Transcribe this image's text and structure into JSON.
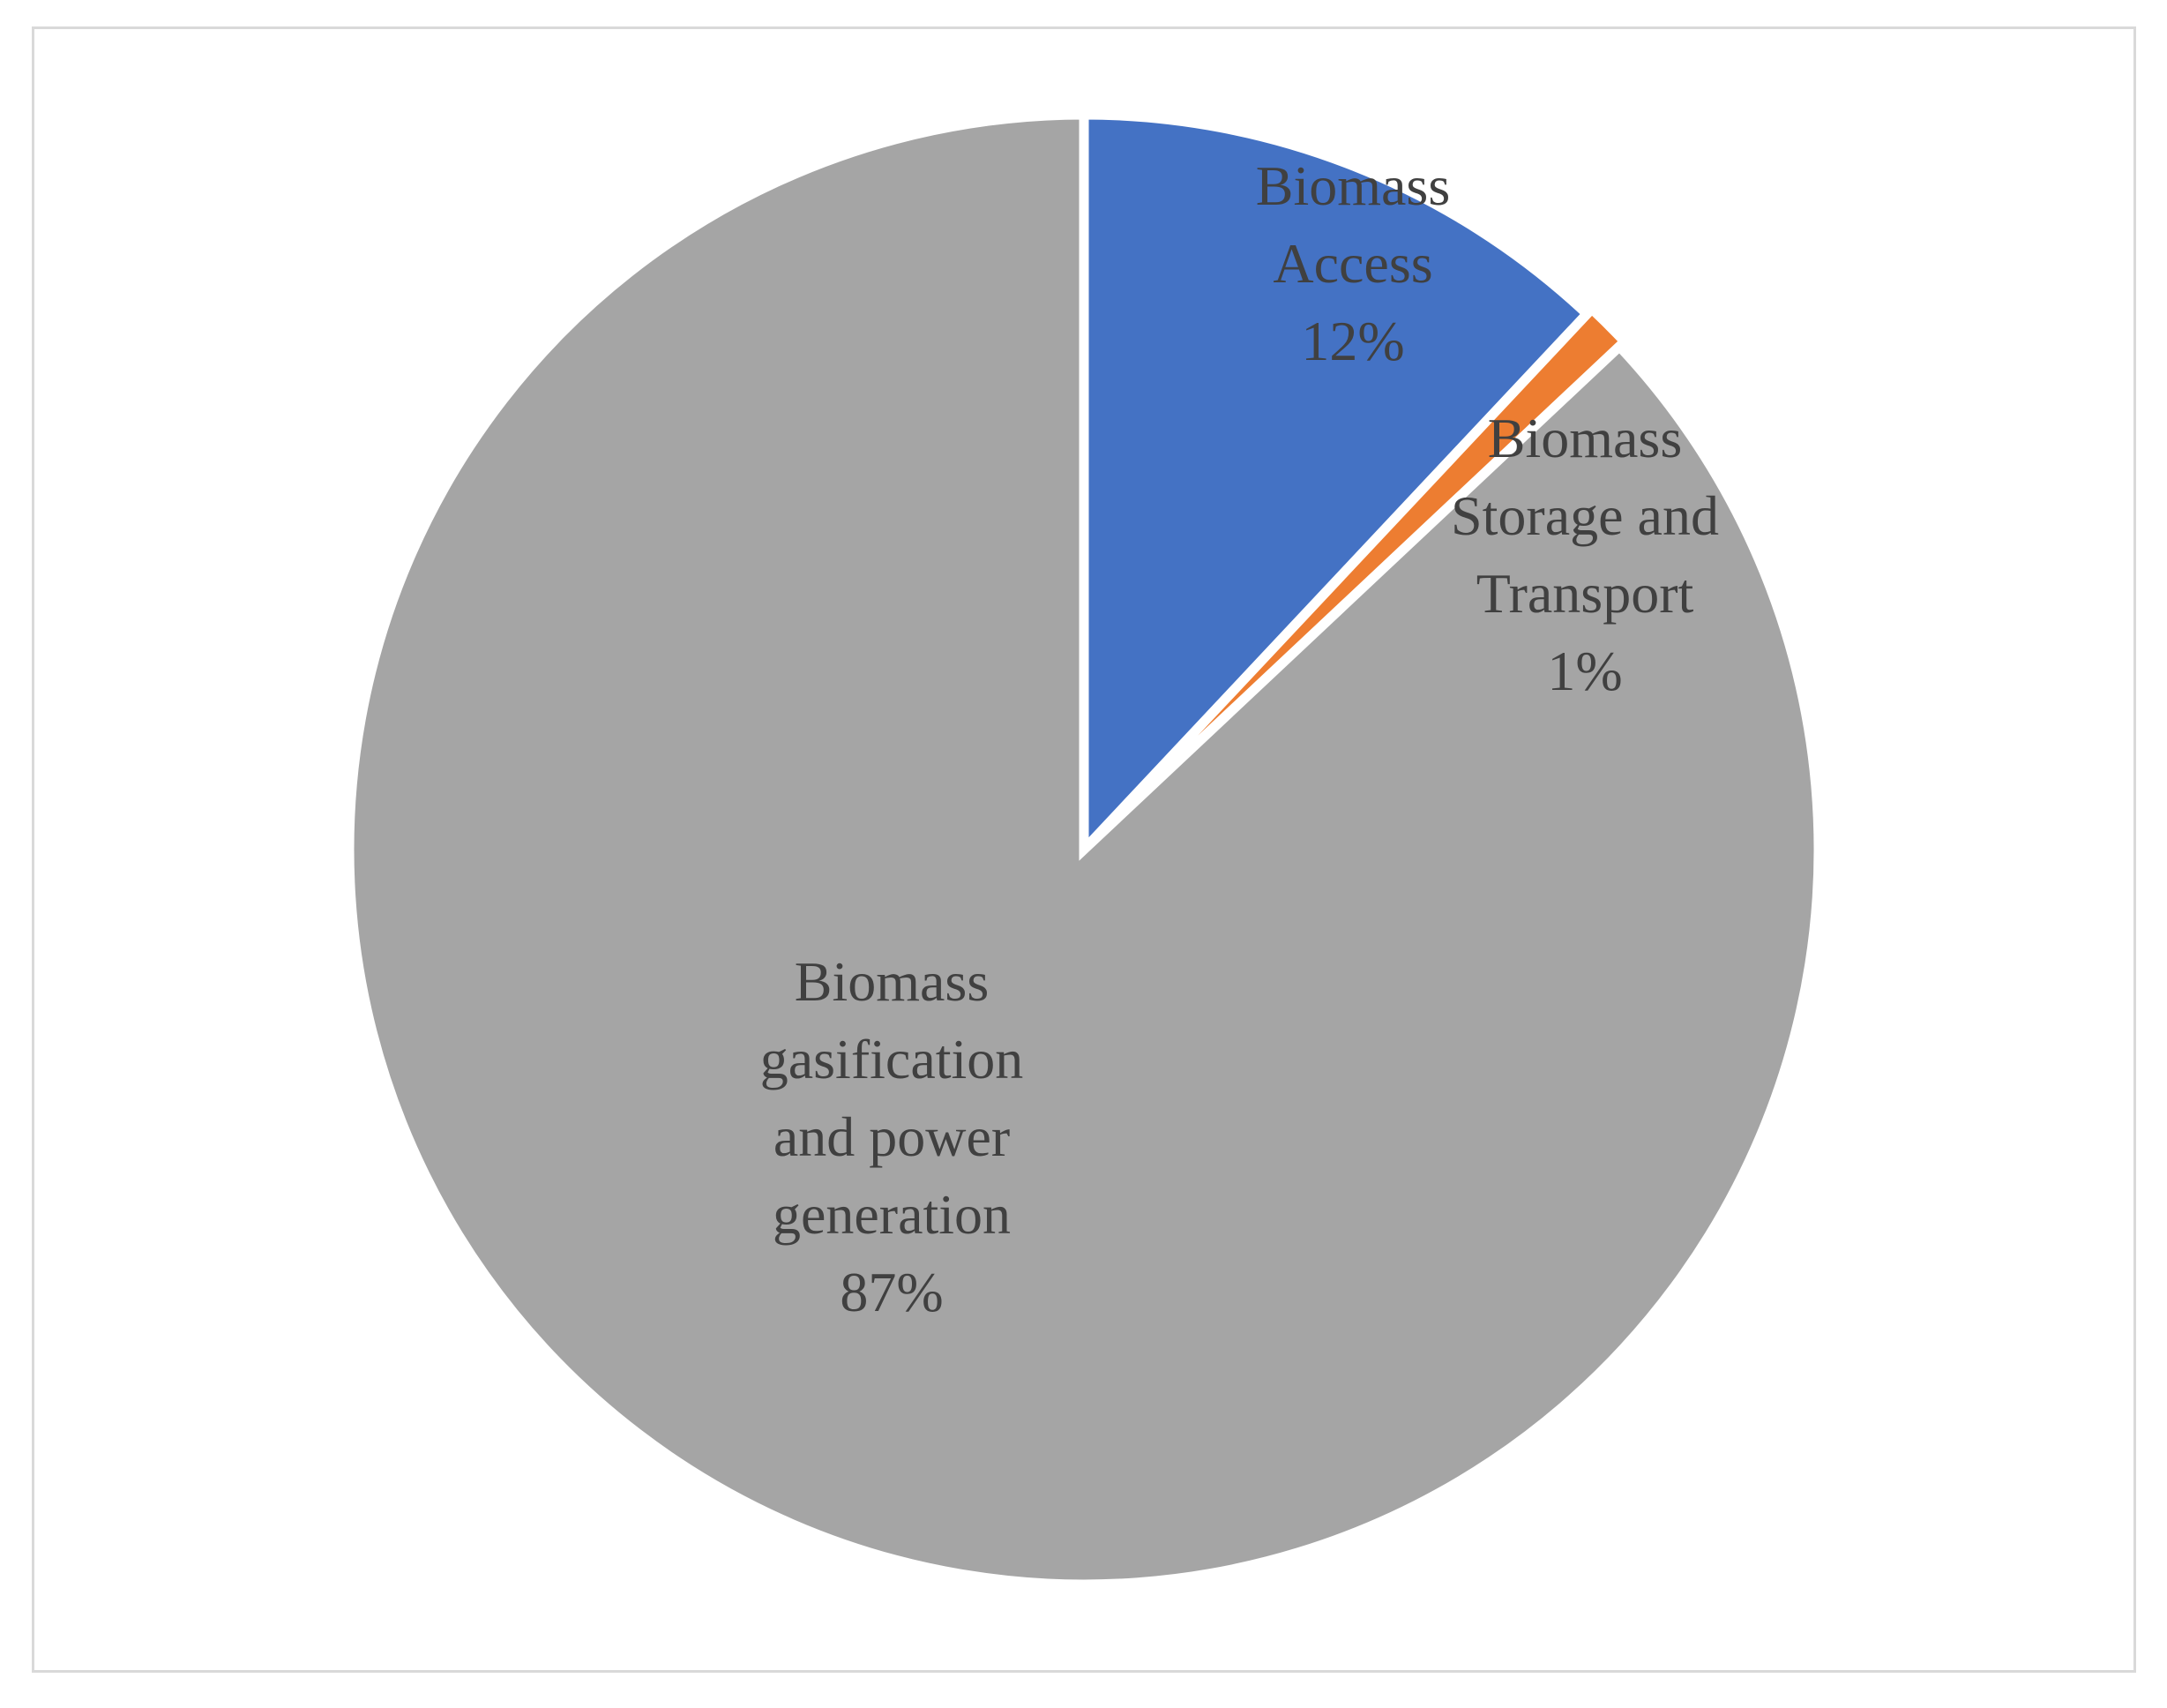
{
  "chart_data": {
    "type": "pie",
    "slices": [
      {
        "label": [
          "Biomass",
          "Access"
        ],
        "value": 12,
        "value_text": "12%",
        "color": "#4472c4"
      },
      {
        "label": [
          "Biomass",
          "Storage and",
          "Transport"
        ],
        "value": 1,
        "value_text": "1%",
        "color": "#ed7d31"
      },
      {
        "label": [
          "Biomass",
          "gasification",
          "and power",
          "generation"
        ],
        "value": 87,
        "value_text": "87%",
        "color": "#a5a5a5"
      }
    ],
    "start_angle_deg": 0,
    "direction": "clockwise",
    "legend": "none"
  }
}
